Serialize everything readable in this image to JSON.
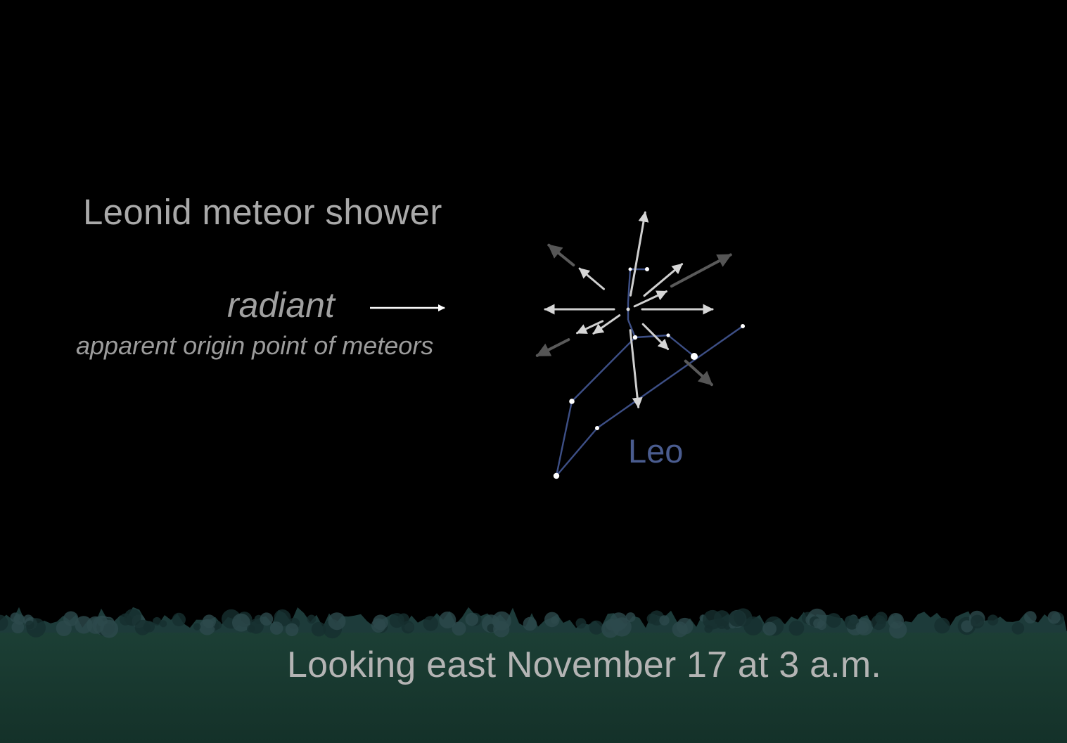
{
  "diagram": {
    "title": "Leonid meteor shower",
    "radiant_label": "radiant",
    "radiant_description": "apparent origin point of meteors",
    "constellation_label": "Leo",
    "caption": "Looking east November 17 at 3 a.m."
  },
  "colors": {
    "sky": "#000000",
    "ground": "#17362c",
    "treeline": "#1d3b3a",
    "constellation_lines": "#3d4f86",
    "constellation_label": "#4a5c8f",
    "stars": "#ffffff",
    "meteor_light": "#cfcfcf",
    "meteor_dark": "#5a5a5a",
    "text": "#a9a9a9"
  }
}
